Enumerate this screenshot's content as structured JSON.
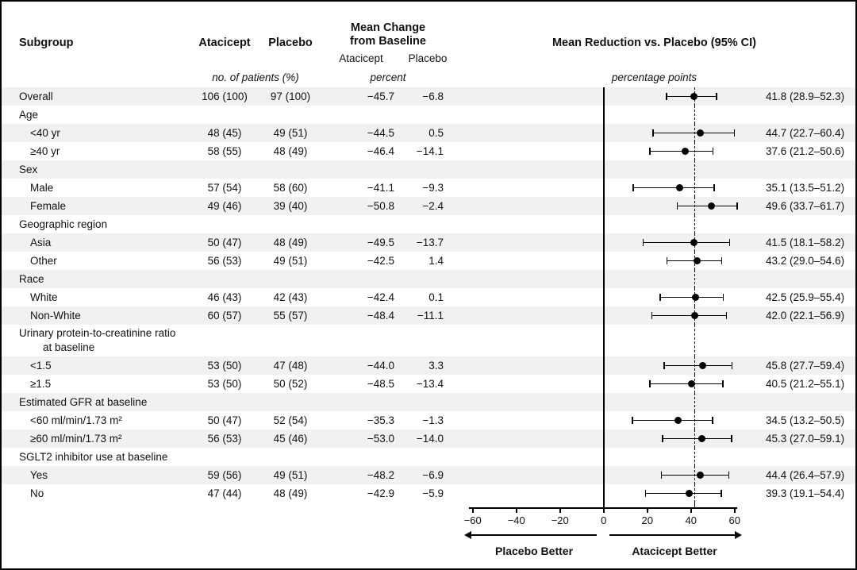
{
  "figure": {
    "header": {
      "subgroup": "Subgroup",
      "atacicept": "Atacicept",
      "placebo": "Placebo",
      "mean_change_line1": "Mean Change",
      "mean_change_line2": "from Baseline",
      "mc_atacicept": "Atacicept",
      "mc_placebo": "Placebo",
      "mean_reduction": "Mean Reduction vs. Placebo (95% CI)",
      "patients_note": "no. of patients (%)",
      "percent_note": "percent",
      "pp_note": "percentage points"
    },
    "axis": {
      "min": -60,
      "max": 60,
      "zero_line": 0,
      "dashed_line": 41.8,
      "ticks": [
        {
          "v": -60,
          "label": "−60"
        },
        {
          "v": -40,
          "label": "−40"
        },
        {
          "v": -20,
          "label": "−20"
        },
        {
          "v": 0,
          "label": "0"
        },
        {
          "v": 20,
          "label": "20"
        },
        {
          "v": 40,
          "label": "40"
        },
        {
          "v": 60,
          "label": "60"
        }
      ],
      "left_label": "Placebo Better",
      "right_label": "Atacicept Better"
    },
    "rows": [
      {
        "type": "data",
        "label": "Overall",
        "indent": false,
        "shaded": true,
        "atacicept": "106 (100)",
        "placebo": "97 (100)",
        "mc_atacicept": "−45.7",
        "mc_placebo": "−6.8",
        "ci_text": "41.8 (28.9–52.3)",
        "point": 0
      },
      {
        "type": "category",
        "label": "Age",
        "shaded": false
      },
      {
        "type": "data",
        "label": "<40 yr",
        "indent": true,
        "shaded": true,
        "atacicept": "48 (45)",
        "placebo": "49 (51)",
        "mc_atacicept": "−44.5",
        "mc_placebo": "0.5",
        "ci_text": "44.7 (22.7–60.4)",
        "point": 1
      },
      {
        "type": "data",
        "label": "≥40 yr",
        "indent": true,
        "shaded": false,
        "atacicept": "58 (55)",
        "placebo": "48 (49)",
        "mc_atacicept": "−46.4",
        "mc_placebo": "−14.1",
        "ci_text": "37.6 (21.2–50.6)",
        "point": 2
      },
      {
        "type": "category",
        "label": "Sex",
        "shaded": true
      },
      {
        "type": "data",
        "label": "Male",
        "indent": true,
        "shaded": false,
        "atacicept": "57 (54)",
        "placebo": "58 (60)",
        "mc_atacicept": "−41.1",
        "mc_placebo": "−9.3",
        "ci_text": "35.1 (13.5–51.2)",
        "point": 3
      },
      {
        "type": "data",
        "label": "Female",
        "indent": true,
        "shaded": true,
        "atacicept": "49 (46)",
        "placebo": "39 (40)",
        "mc_atacicept": "−50.8",
        "mc_placebo": "−2.4",
        "ci_text": "49.6 (33.7–61.7)",
        "point": 4
      },
      {
        "type": "category",
        "label": "Geographic region",
        "shaded": false
      },
      {
        "type": "data",
        "label": "Asia",
        "indent": true,
        "shaded": true,
        "atacicept": "50 (47)",
        "placebo": "48 (49)",
        "mc_atacicept": "−49.5",
        "mc_placebo": "−13.7",
        "ci_text": "41.5 (18.1–58.2)",
        "point": 5
      },
      {
        "type": "data",
        "label": "Other",
        "indent": true,
        "shaded": false,
        "atacicept": "56 (53)",
        "placebo": "49 (51)",
        "mc_atacicept": "−42.5",
        "mc_placebo": "1.4",
        "ci_text": "43.2 (29.0–54.6)",
        "point": 6
      },
      {
        "type": "category",
        "label": "Race",
        "shaded": true
      },
      {
        "type": "data",
        "label": "White",
        "indent": true,
        "shaded": false,
        "atacicept": "46 (43)",
        "placebo": "42 (43)",
        "mc_atacicept": "−42.4",
        "mc_placebo": "0.1",
        "ci_text": "42.5 (25.9–55.4)",
        "point": 7
      },
      {
        "type": "data",
        "label": "Non-White",
        "indent": true,
        "shaded": true,
        "atacicept": "60 (57)",
        "placebo": "55 (57)",
        "mc_atacicept": "−48.4",
        "mc_placebo": "−11.1",
        "ci_text": "42.0 (22.1–56.9)",
        "point": 8
      },
      {
        "type": "category",
        "label": "Urinary protein-to-creatinine ratio",
        "label2": "at baseline",
        "shaded": false
      },
      {
        "type": "data",
        "label": "<1.5",
        "indent": true,
        "shaded": true,
        "atacicept": "53 (50)",
        "placebo": "47 (48)",
        "mc_atacicept": "−44.0",
        "mc_placebo": "3.3",
        "ci_text": "45.8 (27.7–59.4)",
        "point": 9
      },
      {
        "type": "data",
        "label": "≥1.5",
        "indent": true,
        "shaded": false,
        "atacicept": "53 (50)",
        "placebo": "50 (52)",
        "mc_atacicept": "−48.5",
        "mc_placebo": "−13.4",
        "ci_text": "40.5 (21.2–55.1)",
        "point": 10
      },
      {
        "type": "category",
        "label": "Estimated GFR at baseline",
        "shaded": true
      },
      {
        "type": "data",
        "label": "<60 ml/min/1.73 m²",
        "indent": true,
        "shaded": false,
        "atacicept": "50 (47)",
        "placebo": "52 (54)",
        "mc_atacicept": "−35.3",
        "mc_placebo": "−1.3",
        "ci_text": "34.5 (13.2–50.5)",
        "point": 11
      },
      {
        "type": "data",
        "label": "≥60 ml/min/1.73 m²",
        "indent": true,
        "shaded": true,
        "atacicept": "56 (53)",
        "placebo": "45 (46)",
        "mc_atacicept": "−53.0",
        "mc_placebo": "−14.0",
        "ci_text": "45.3 (27.0–59.1)",
        "point": 12
      },
      {
        "type": "category",
        "label": "SGLT2 inhibitor use at baseline",
        "shaded": false
      },
      {
        "type": "data",
        "label": "Yes",
        "indent": true,
        "shaded": true,
        "atacicept": "59 (56)",
        "placebo": "49 (51)",
        "mc_atacicept": "−48.2",
        "mc_placebo": "−6.9",
        "ci_text": "44.4 (26.4–57.9)",
        "point": 13
      },
      {
        "type": "data",
        "label": "No",
        "indent": true,
        "shaded": false,
        "atacicept": "47 (44)",
        "placebo": "48 (49)",
        "mc_atacicept": "−42.9",
        "mc_placebo": "−5.9",
        "ci_text": "39.3 (19.1–54.4)",
        "point": 14
      }
    ]
  },
  "chart_data": {
    "type": "scatter",
    "subtype": "forest-plot",
    "title": "Mean Reduction vs. Placebo (95% CI)",
    "xlabel": "percentage points",
    "xlim": [
      -60,
      60
    ],
    "xticks": [
      -60,
      -40,
      -20,
      0,
      20,
      40,
      60
    ],
    "reference_line_x": 0,
    "dashed_line_x": 41.8,
    "legend_position": "none",
    "grid": false,
    "points": [
      {
        "subgroup": "Overall",
        "estimate": 41.8,
        "ci_low": 28.9,
        "ci_high": 52.3
      },
      {
        "subgroup": "<40 yr",
        "estimate": 44.7,
        "ci_low": 22.7,
        "ci_high": 60.4
      },
      {
        "subgroup": "≥40 yr",
        "estimate": 37.6,
        "ci_low": 21.2,
        "ci_high": 50.6
      },
      {
        "subgroup": "Male",
        "estimate": 35.1,
        "ci_low": 13.5,
        "ci_high": 51.2
      },
      {
        "subgroup": "Female",
        "estimate": 49.6,
        "ci_low": 33.7,
        "ci_high": 61.7
      },
      {
        "subgroup": "Asia",
        "estimate": 41.5,
        "ci_low": 18.1,
        "ci_high": 58.2
      },
      {
        "subgroup": "Other",
        "estimate": 43.2,
        "ci_low": 29.0,
        "ci_high": 54.6
      },
      {
        "subgroup": "White",
        "estimate": 42.5,
        "ci_low": 25.9,
        "ci_high": 55.4
      },
      {
        "subgroup": "Non-White",
        "estimate": 42.0,
        "ci_low": 22.1,
        "ci_high": 56.9
      },
      {
        "subgroup": "<1.5",
        "estimate": 45.8,
        "ci_low": 27.7,
        "ci_high": 59.4
      },
      {
        "subgroup": "≥1.5",
        "estimate": 40.5,
        "ci_low": 21.2,
        "ci_high": 55.1
      },
      {
        "subgroup": "<60 ml/min/1.73 m²",
        "estimate": 34.5,
        "ci_low": 13.2,
        "ci_high": 50.5
      },
      {
        "subgroup": "≥60 ml/min/1.73 m²",
        "estimate": 45.3,
        "ci_low": 27.0,
        "ci_high": 59.1
      },
      {
        "subgroup": "Yes",
        "estimate": 44.4,
        "ci_low": 26.4,
        "ci_high": 57.9
      },
      {
        "subgroup": "No",
        "estimate": 39.3,
        "ci_low": 19.1,
        "ci_high": 54.4
      }
    ]
  }
}
